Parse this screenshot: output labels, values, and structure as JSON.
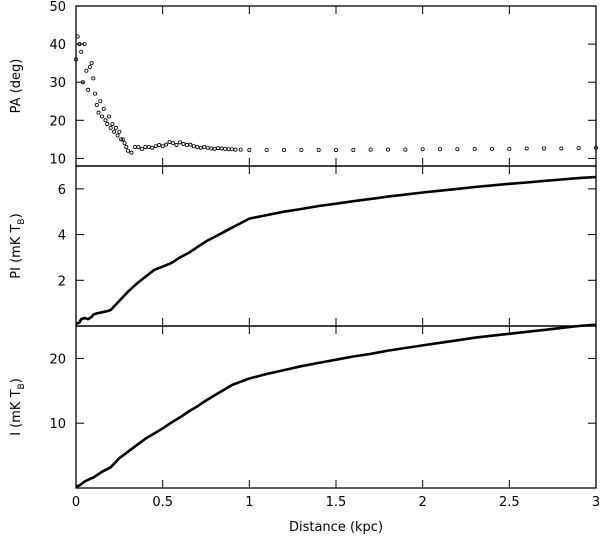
{
  "chart_data": [
    {
      "type": "scatter",
      "ylabel": "PA (deg)",
      "ylim": [
        8,
        50
      ],
      "xlim": [
        0,
        3
      ],
      "yticks": [
        10,
        20,
        30,
        40,
        50
      ],
      "ytick_labels": [
        "10",
        "20",
        "30",
        "40",
        "50"
      ],
      "series": [
        {
          "x": [
            0.0,
            0.01,
            0.02,
            0.03,
            0.04,
            0.05,
            0.06,
            0.07,
            0.08,
            0.09,
            0.1,
            0.11,
            0.12,
            0.13,
            0.14,
            0.15,
            0.16,
            0.17,
            0.18,
            0.19,
            0.2,
            0.21,
            0.22,
            0.23,
            0.24,
            0.25,
            0.26,
            0.27,
            0.28,
            0.29,
            0.3,
            0.32,
            0.34,
            0.36,
            0.38,
            0.4,
            0.42,
            0.44,
            0.46,
            0.48,
            0.5,
            0.52,
            0.54,
            0.56,
            0.58,
            0.6,
            0.62,
            0.64,
            0.66,
            0.68,
            0.7,
            0.72,
            0.74,
            0.76,
            0.78,
            0.8,
            0.82,
            0.84,
            0.86,
            0.88,
            0.9,
            0.92,
            0.95,
            1.0,
            1.1,
            1.2,
            1.3,
            1.4,
            1.5,
            1.6,
            1.7,
            1.8,
            1.9,
            2.0,
            2.1,
            2.2,
            2.3,
            2.4,
            2.5,
            2.6,
            2.7,
            2.8,
            2.9,
            3.0
          ],
          "y": [
            36,
            42,
            40,
            38,
            30,
            40,
            33,
            28,
            34,
            35,
            31,
            27,
            24,
            22,
            25,
            21,
            23,
            20,
            19,
            21,
            18,
            19,
            17,
            18,
            16,
            17,
            15,
            15,
            14,
            13,
            12,
            11.5,
            13,
            13,
            12.5,
            13,
            13,
            12.8,
            13.2,
            13.5,
            13.2,
            13.6,
            14.3,
            14,
            13.5,
            14.2,
            13.8,
            13.5,
            13.6,
            13.2,
            13,
            12.8,
            13,
            12.8,
            12.6,
            12.5,
            12.7,
            12.6,
            12.5,
            12.4,
            12.4,
            12.3,
            12.3,
            12.2,
            12.2,
            12.2,
            12.2,
            12.2,
            12.2,
            12.2,
            12.3,
            12.3,
            12.3,
            12.4,
            12.4,
            12.4,
            12.5,
            12.5,
            12.5,
            12.6,
            12.6,
            12.6,
            12.7,
            12.8
          ]
        }
      ]
    },
    {
      "type": "line",
      "ylabel": "PI (mK T",
      "ylabel_sub": "B",
      "ylabel_end": ")",
      "ylim": [
        0,
        7
      ],
      "xlim": [
        0,
        3
      ],
      "yticks": [
        2,
        4,
        6
      ],
      "ytick_labels": [
        "2",
        "4",
        "6"
      ],
      "series": [
        {
          "x": [
            0,
            0.02,
            0.03,
            0.05,
            0.07,
            0.09,
            0.1,
            0.12,
            0.15,
            0.18,
            0.2,
            0.25,
            0.3,
            0.35,
            0.4,
            0.45,
            0.5,
            0.55,
            0.6,
            0.65,
            0.7,
            0.75,
            0.8,
            0.85,
            0.9,
            0.95,
            1.0,
            1.1,
            1.2,
            1.3,
            1.4,
            1.5,
            1.6,
            1.7,
            1.8,
            1.9,
            2.0,
            2.1,
            2.2,
            2.3,
            2.4,
            2.5,
            2.6,
            2.7,
            2.8,
            2.9,
            3.0
          ],
          "y": [
            0.1,
            0.15,
            0.3,
            0.35,
            0.3,
            0.4,
            0.5,
            0.55,
            0.6,
            0.65,
            0.7,
            1.1,
            1.5,
            1.85,
            2.15,
            2.45,
            2.6,
            2.75,
            3.0,
            3.2,
            3.45,
            3.7,
            3.9,
            4.1,
            4.3,
            4.5,
            4.7,
            4.85,
            5.0,
            5.12,
            5.25,
            5.35,
            5.46,
            5.56,
            5.66,
            5.75,
            5.84,
            5.92,
            6.0,
            6.08,
            6.15,
            6.22,
            6.28,
            6.35,
            6.41,
            6.47,
            6.52
          ]
        }
      ]
    },
    {
      "type": "line",
      "ylabel": "I (mK T",
      "ylabel_sub": "B",
      "ylabel_end": ")",
      "xlabel": "Distance (kpc)",
      "ylim": [
        0,
        25
      ],
      "xlim": [
        0,
        3
      ],
      "yticks": [
        10,
        20
      ],
      "ytick_labels": [
        "10",
        "20"
      ],
      "xticks": [
        0,
        0.5,
        1,
        1.5,
        2,
        2.5,
        3
      ],
      "xtick_labels": [
        "0",
        "0.5",
        "1",
        "1.5",
        "2",
        "2.5",
        "3"
      ],
      "series": [
        {
          "x": [
            0,
            0.02,
            0.05,
            0.08,
            0.1,
            0.15,
            0.2,
            0.25,
            0.3,
            0.35,
            0.4,
            0.45,
            0.5,
            0.55,
            0.6,
            0.65,
            0.7,
            0.75,
            0.8,
            0.85,
            0.9,
            0.95,
            1.0,
            1.1,
            1.2,
            1.3,
            1.4,
            1.5,
            1.6,
            1.7,
            1.8,
            1.9,
            2.0,
            2.1,
            2.2,
            2.3,
            2.4,
            2.5,
            2.6,
            2.7,
            2.8,
            2.9,
            3.0
          ],
          "y": [
            0.2,
            0.4,
            1.0,
            1.4,
            1.6,
            2.5,
            3.2,
            4.6,
            5.6,
            6.6,
            7.6,
            8.4,
            9.2,
            10.1,
            10.9,
            11.8,
            12.6,
            13.5,
            14.3,
            15.1,
            15.9,
            16.4,
            16.9,
            17.6,
            18.2,
            18.8,
            19.3,
            19.8,
            20.3,
            20.7,
            21.2,
            21.6,
            22.0,
            22.4,
            22.8,
            23.2,
            23.5,
            23.8,
            24.1,
            24.4,
            24.7,
            25.0,
            25.2
          ]
        }
      ]
    }
  ]
}
